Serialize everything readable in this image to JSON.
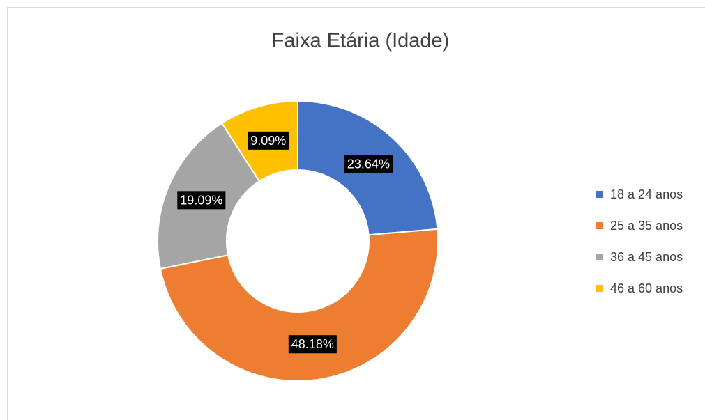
{
  "chart_data": {
    "type": "donut",
    "title": "Faixa Etária (Idade)",
    "categories": [
      "18 a 24 anos",
      "25 a 35 anos",
      "36 a 45 anos",
      "46 a 60 anos"
    ],
    "values": [
      23.64,
      48.18,
      19.09,
      9.09
    ],
    "value_labels": [
      "23.64%",
      "48.18%",
      "19.09%",
      "9.09%"
    ],
    "colors": [
      "#4472c4",
      "#ed7d31",
      "#a5a5a5",
      "#ffc000"
    ],
    "legend": "right"
  }
}
